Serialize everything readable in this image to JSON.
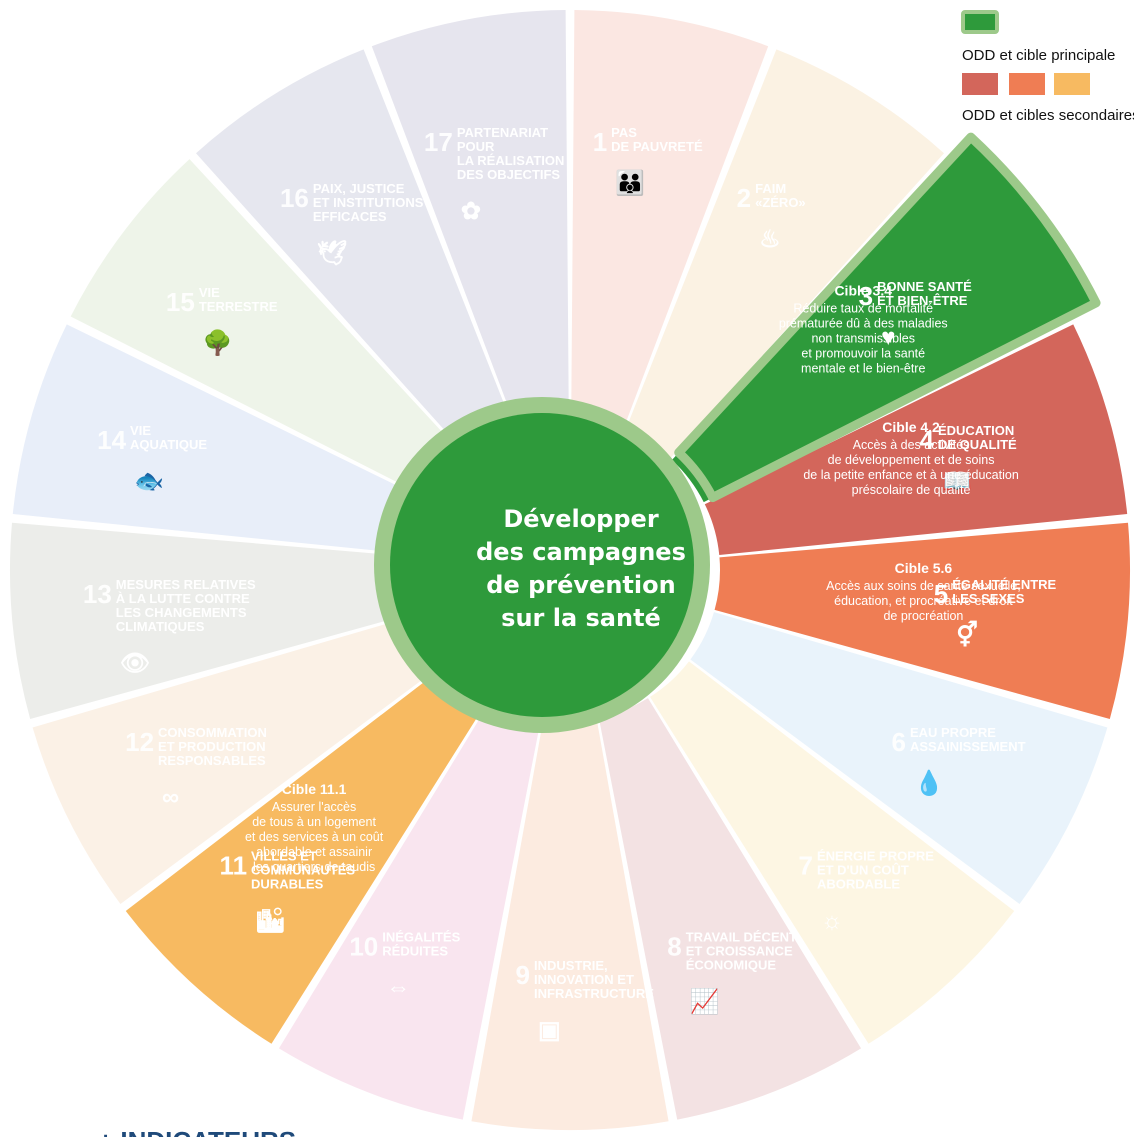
{
  "colors": {
    "primary": "#2e9a3b",
    "primary_border": "#9dc98a",
    "secondary": [
      "#d3665b",
      "#ef7d54",
      "#f7ba61"
    ],
    "center_ring": "#9dc98a",
    "center_fill": "#2e9a3b",
    "footer_text": "#1f4a7a"
  },
  "legend": {
    "primary_label": "ODD et cible principale",
    "secondary_label": "ODD et cibles secondaires"
  },
  "center": {
    "lines": [
      "Développer",
      "des campagnes",
      "de prévention",
      "sur la santé"
    ]
  },
  "footer": {
    "text": "+ INDICATEURS"
  },
  "segments": [
    {
      "number": "1",
      "title_lines": [
        "PAS",
        "DE PAUVRETÉ"
      ],
      "icon": "people-icon",
      "color": "#fbe7e2",
      "status": "inactive"
    },
    {
      "number": "2",
      "title_lines": [
        "FAIM",
        "«ZÉRO»"
      ],
      "icon": "bowl-icon",
      "color": "#fbf2e3",
      "status": "inactive"
    },
    {
      "number": "3",
      "title_lines": [
        "BONNE SANTÉ",
        "ET BIEN-ÊTRE"
      ],
      "icon": "heartbeat-icon",
      "color": "#2e9a3b",
      "status": "primary",
      "cible": {
        "title": "Cible 3.4",
        "lines": [
          "Réduire taux de mortalité",
          "prématurée dû à des maladies",
          "non transmissibles",
          "et promouvoir la santé",
          "mentale et le bien-être"
        ]
      }
    },
    {
      "number": "4",
      "title_lines": [
        "ÉDUCATION",
        "DE QUALITÉ"
      ],
      "icon": "book-icon",
      "color": "#d3665b",
      "status": "secondary",
      "cible": {
        "title": "Cible 4.2",
        "lines": [
          "Accès à des activités",
          "de développement et de soins",
          "de la petite enfance et à une éducation",
          "préscolaire de qualité"
        ]
      }
    },
    {
      "number": "5",
      "title_lines": [
        "ÉGALITÉ ENTRE",
        "LES SEXES"
      ],
      "icon": "gender-equality-icon",
      "color": "#ef7d54",
      "status": "secondary",
      "cible": {
        "title": "Cible 5.6",
        "lines": [
          "Accès aux soins de santé sexuelle,",
          "éducation, et procréative et droit",
          "de procréation"
        ]
      }
    },
    {
      "number": "6",
      "title_lines": [
        "EAU PROPRE",
        "ASSAINISSEMENT"
      ],
      "icon": "water-icon",
      "color": "#e9f3fb",
      "status": "inactive"
    },
    {
      "number": "7",
      "title_lines": [
        "ÉNERGIE PROPRE",
        "ET D'UN COÛT",
        "ABORDABLE"
      ],
      "icon": "sun-icon",
      "color": "#fdf6e3",
      "status": "inactive"
    },
    {
      "number": "8",
      "title_lines": [
        "TRAVAIL DÉCENT",
        "ET CROISSANCE",
        "ÉCONOMIQUE"
      ],
      "icon": "growth-chart-icon",
      "color": "#f3e2e3",
      "status": "inactive"
    },
    {
      "number": "9",
      "title_lines": [
        "INDUSTRIE,",
        "INNOVATION ET",
        "INFRASTRUCTURE"
      ],
      "icon": "cubes-icon",
      "color": "#fcebe0",
      "status": "inactive"
    },
    {
      "number": "10",
      "title_lines": [
        "INÉGALITÉS",
        "RÉDUITES"
      ],
      "icon": "equality-arrows-icon",
      "color": "#f9e5ef",
      "status": "inactive"
    },
    {
      "number": "11",
      "title_lines": [
        "VILLES ET",
        "COMMUNAUTÉS",
        "DURABLES"
      ],
      "icon": "city-icon",
      "color": "#f7ba61",
      "status": "secondary",
      "cible": {
        "title": "Cible 11.1",
        "lines": [
          "Assurer l'accès",
          "de tous à un logement",
          "et des services à un coût",
          "abordable et assainir",
          "les quartiers de taudis"
        ]
      }
    },
    {
      "number": "12",
      "title_lines": [
        "CONSOMMATION",
        "ET PRODUCTION",
        "RESPONSABLES"
      ],
      "icon": "infinity-icon",
      "color": "#fbf1e6",
      "status": "inactive"
    },
    {
      "number": "13",
      "title_lines": [
        "MESURES RELATIVES",
        "À LA LUTTE CONTRE",
        "LES CHANGEMENTS",
        "CLIMATIQUES"
      ],
      "icon": "eye-globe-icon",
      "color": "#ecedea",
      "status": "inactive"
    },
    {
      "number": "14",
      "title_lines": [
        "VIE",
        "AQUATIQUE"
      ],
      "icon": "fish-icon",
      "color": "#e8eef9",
      "status": "inactive"
    },
    {
      "number": "15",
      "title_lines": [
        "VIE",
        "TERRESTRE"
      ],
      "icon": "tree-icon",
      "color": "#eef4e9",
      "status": "inactive"
    },
    {
      "number": "16",
      "title_lines": [
        "PAIX, JUSTICE",
        "ET INSTITUTIONS",
        "EFFICACES"
      ],
      "icon": "dove-icon",
      "color": "#e6e7ef",
      "status": "inactive"
    },
    {
      "number": "17",
      "title_lines": [
        "PARTENARIAT",
        "POUR",
        "LA RÉALISATION",
        "DES OBJECTIFS"
      ],
      "icon": "rings-icon",
      "color": "#e6e5ee",
      "status": "inactive"
    }
  ]
}
